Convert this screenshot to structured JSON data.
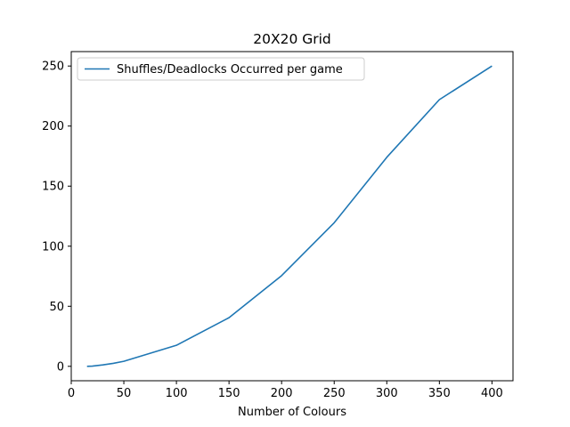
{
  "chart_data": {
    "type": "line",
    "title": "20X20 Grid",
    "xlabel": "Number of Colours",
    "ylabel": "",
    "xlim": [
      0,
      420
    ],
    "ylim": [
      -12,
      262
    ],
    "x_ticks": [
      0,
      50,
      100,
      150,
      200,
      250,
      300,
      350,
      400
    ],
    "y_ticks": [
      0,
      50,
      100,
      150,
      200,
      250
    ],
    "grid": false,
    "legend_position": "upper-left",
    "series": [
      {
        "name": "Shuffles/Deadlocks Occurred per game",
        "color": "#1f77b4",
        "x": [
          15,
          20,
          30,
          40,
          50,
          100,
          150,
          200,
          250,
          300,
          350,
          400
        ],
        "y": [
          0,
          0.2,
          1.2,
          2.5,
          4.2,
          17.5,
          40.5,
          75.5,
          119.5,
          174,
          222,
          250
        ]
      }
    ]
  }
}
